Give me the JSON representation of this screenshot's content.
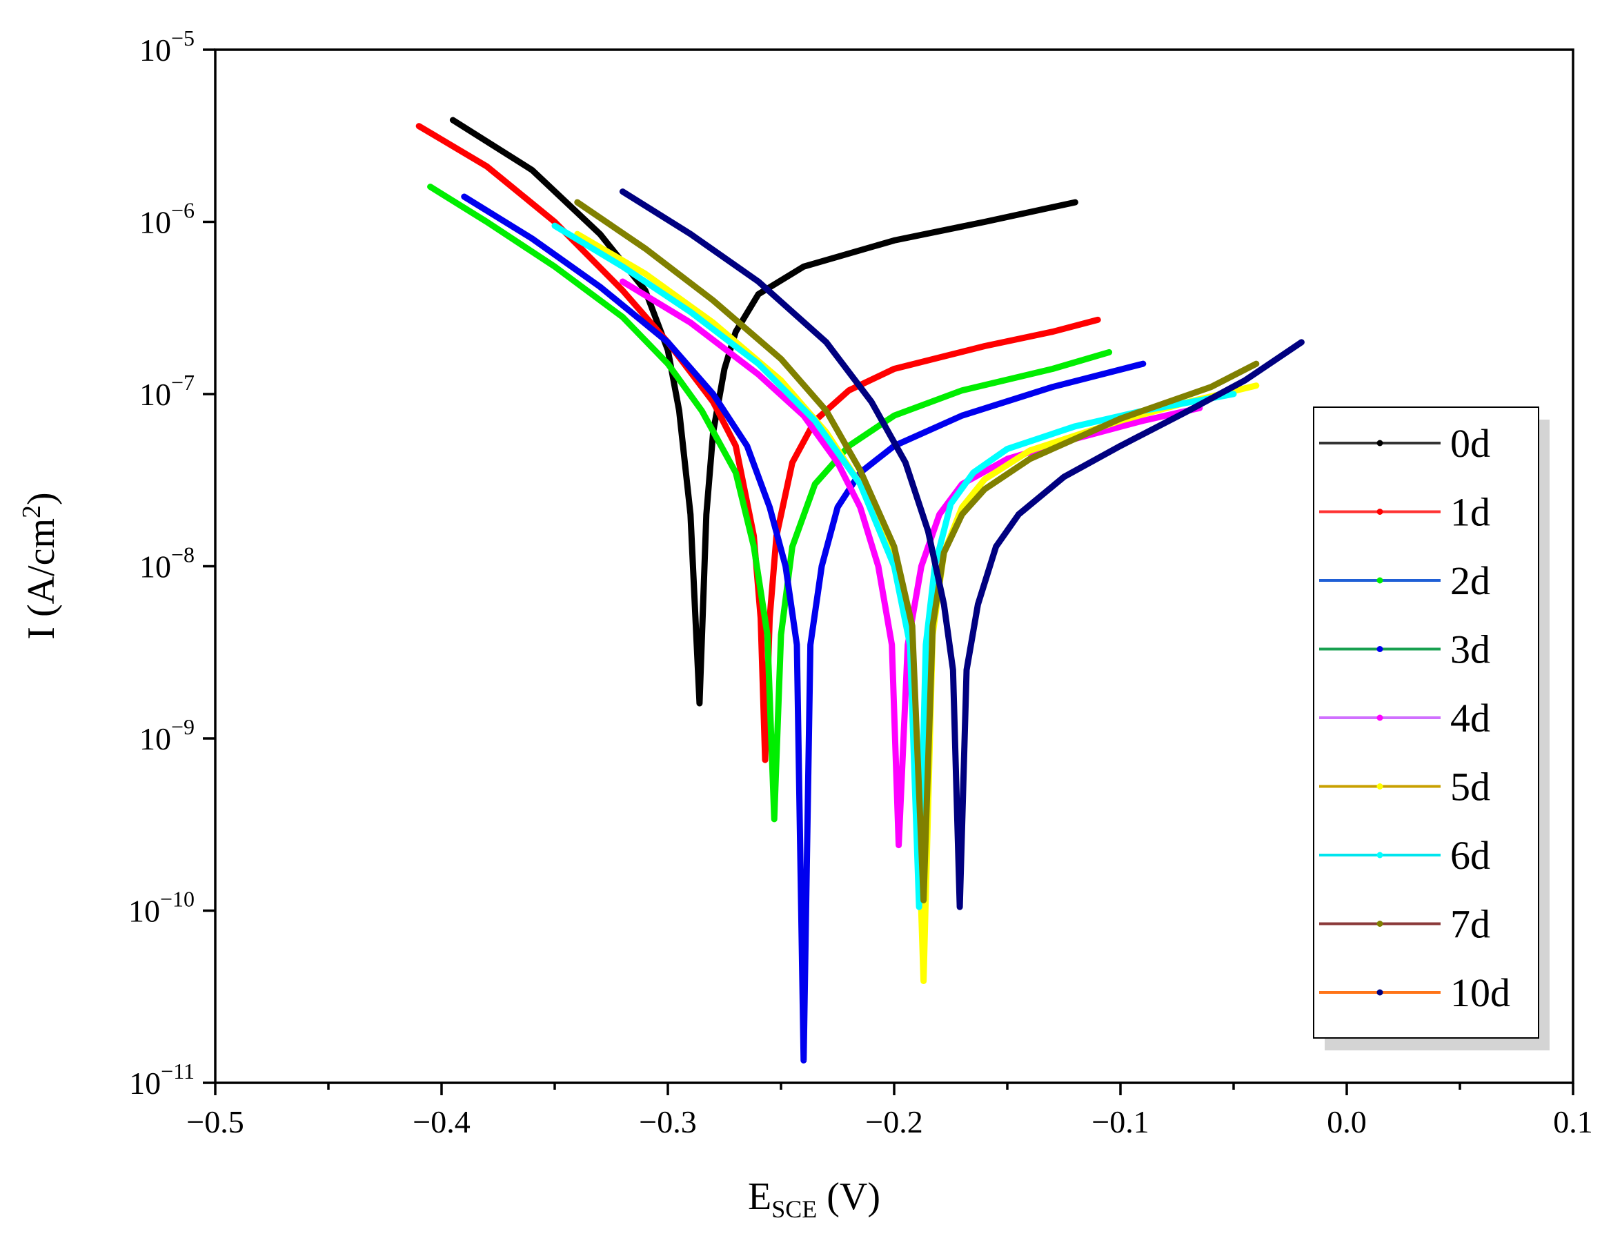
{
  "chart_data": {
    "type": "line",
    "title": "",
    "xlabel": {
      "main": "E",
      "sub": "SCE",
      "suffix": " (V)"
    },
    "ylabel": {
      "prefix": "I (A/cm",
      "sup": "2",
      "suffix": ")"
    },
    "xlim": [
      -0.5,
      0.1
    ],
    "ylim": [
      1e-11,
      1e-05
    ],
    "yscale": "log",
    "xticks": [
      {
        "value": -0.5,
        "label": "−0.5"
      },
      {
        "value": -0.4,
        "label": "−0.4"
      },
      {
        "value": -0.3,
        "label": "−0.3"
      },
      {
        "value": -0.2,
        "label": "−0.2"
      },
      {
        "value": -0.1,
        "label": "−0.1"
      },
      {
        "value": 0.0,
        "label": "0.0"
      },
      {
        "value": 0.1,
        "label": "0.1"
      }
    ],
    "yticks": [
      {
        "value": 1e-05,
        "base": "10",
        "exp": "−5"
      },
      {
        "value": 1e-06,
        "base": "10",
        "exp": "−6"
      },
      {
        "value": 1e-07,
        "base": "10",
        "exp": "−7"
      },
      {
        "value": 1e-08,
        "base": "10",
        "exp": "−8"
      },
      {
        "value": 1e-09,
        "base": "10",
        "exp": "−9"
      },
      {
        "value": 1e-10,
        "base": "10",
        "exp": "−10"
      },
      {
        "value": 1e-11,
        "base": "10",
        "exp": "−11"
      }
    ],
    "legend_position": "right",
    "series": [
      {
        "name": "0d",
        "legend_color": "#333333",
        "curve_color": "#000000",
        "ecorr": -0.286,
        "icorr": 1.6e-09,
        "cathodic": [
          [
            -0.395,
            3.9e-06
          ],
          [
            -0.36,
            2e-06
          ],
          [
            -0.33,
            8.5e-07
          ],
          [
            -0.31,
            4e-07
          ],
          [
            -0.3,
            1.8e-07
          ],
          [
            -0.295,
            8e-08
          ],
          [
            -0.29,
            2e-08
          ]
        ],
        "anodic": [
          [
            -0.283,
            2e-08
          ],
          [
            -0.28,
            6e-08
          ],
          [
            -0.275,
            1.4e-07
          ],
          [
            -0.27,
            2.3e-07
          ],
          [
            -0.26,
            3.8e-07
          ],
          [
            -0.24,
            5.5e-07
          ],
          [
            -0.2,
            7.8e-07
          ],
          [
            -0.16,
            1e-06
          ],
          [
            -0.12,
            1.3e-06
          ]
        ]
      },
      {
        "name": "1d",
        "legend_color": "#ff3333",
        "curve_color": "#ff0000",
        "ecorr": -0.257,
        "icorr": 7.5e-10,
        "cathodic": [
          [
            -0.41,
            3.6e-06
          ],
          [
            -0.38,
            2.1e-06
          ],
          [
            -0.35,
            1e-06
          ],
          [
            -0.32,
            4e-07
          ],
          [
            -0.3,
            2e-07
          ],
          [
            -0.28,
            9e-08
          ],
          [
            -0.27,
            5e-08
          ],
          [
            -0.262,
            1.5e-08
          ],
          [
            -0.259,
            5e-09
          ]
        ],
        "anodic": [
          [
            -0.255,
            5e-09
          ],
          [
            -0.252,
            1.5e-08
          ],
          [
            -0.245,
            4e-08
          ],
          [
            -0.235,
            7e-08
          ],
          [
            -0.22,
            1.05e-07
          ],
          [
            -0.2,
            1.4e-07
          ],
          [
            -0.16,
            1.9e-07
          ],
          [
            -0.13,
            2.3e-07
          ],
          [
            -0.11,
            2.7e-07
          ]
        ]
      },
      {
        "name": "2d",
        "legend_color": "#1f5fd6",
        "curve_color": "#00ee00",
        "ecorr": -0.253,
        "icorr": 3.4e-10,
        "cathodic": [
          [
            -0.405,
            1.6e-06
          ],
          [
            -0.38,
            1e-06
          ],
          [
            -0.35,
            5.5e-07
          ],
          [
            -0.32,
            2.8e-07
          ],
          [
            -0.3,
            1.5e-07
          ],
          [
            -0.285,
            8e-08
          ],
          [
            -0.27,
            3.5e-08
          ],
          [
            -0.262,
            1.3e-08
          ],
          [
            -0.256,
            4e-09
          ]
        ],
        "anodic": [
          [
            -0.25,
            4e-09
          ],
          [
            -0.245,
            1.3e-08
          ],
          [
            -0.235,
            3e-08
          ],
          [
            -0.22,
            5e-08
          ],
          [
            -0.2,
            7.5e-08
          ],
          [
            -0.17,
            1.05e-07
          ],
          [
            -0.13,
            1.4e-07
          ],
          [
            -0.105,
            1.75e-07
          ]
        ]
      },
      {
        "name": "3d",
        "legend_color": "#18a050",
        "curve_color": "#0000ee",
        "ecorr": -0.24,
        "icorr": 1.35e-11,
        "cathodic": [
          [
            -0.39,
            1.4e-06
          ],
          [
            -0.36,
            8e-07
          ],
          [
            -0.33,
            4.2e-07
          ],
          [
            -0.3,
            2e-07
          ],
          [
            -0.28,
            1e-07
          ],
          [
            -0.265,
            5e-08
          ],
          [
            -0.255,
            2.2e-08
          ],
          [
            -0.248,
            1e-08
          ],
          [
            -0.243,
            3.5e-09
          ]
        ],
        "anodic": [
          [
            -0.237,
            3.5e-09
          ],
          [
            -0.232,
            1e-08
          ],
          [
            -0.225,
            2.2e-08
          ],
          [
            -0.215,
            3.5e-08
          ],
          [
            -0.2,
            5e-08
          ],
          [
            -0.17,
            7.5e-08
          ],
          [
            -0.13,
            1.1e-07
          ],
          [
            -0.09,
            1.5e-07
          ]
        ]
      },
      {
        "name": "4d",
        "legend_color": "#d070ff",
        "curve_color": "#ff00ff",
        "ecorr": -0.198,
        "icorr": 2.4e-10,
        "cathodic": [
          [
            -0.32,
            4.5e-07
          ],
          [
            -0.29,
            2.6e-07
          ],
          [
            -0.26,
            1.3e-07
          ],
          [
            -0.24,
            7.5e-08
          ],
          [
            -0.225,
            4e-08
          ],
          [
            -0.215,
            2.2e-08
          ],
          [
            -0.207,
            1e-08
          ],
          [
            -0.201,
            3.5e-09
          ]
        ],
        "anodic": [
          [
            -0.194,
            3.5e-09
          ],
          [
            -0.188,
            1e-08
          ],
          [
            -0.18,
            2e-08
          ],
          [
            -0.17,
            3e-08
          ],
          [
            -0.15,
            4.2e-08
          ],
          [
            -0.12,
            5.5e-08
          ],
          [
            -0.09,
            7e-08
          ],
          [
            -0.065,
            8.3e-08
          ]
        ]
      },
      {
        "name": "5d",
        "legend_color": "#c8a000",
        "curve_color": "#ffff00",
        "ecorr": -0.187,
        "icorr": 3.9e-11,
        "cathodic": [
          [
            -0.34,
            8.5e-07
          ],
          [
            -0.31,
            5e-07
          ],
          [
            -0.28,
            2.6e-07
          ],
          [
            -0.25,
            1.2e-07
          ],
          [
            -0.23,
            6e-08
          ],
          [
            -0.215,
            3e-08
          ],
          [
            -0.2,
            1.2e-08
          ],
          [
            -0.192,
            4e-09
          ]
        ],
        "anodic": [
          [
            -0.183,
            4e-09
          ],
          [
            -0.178,
            1.2e-08
          ],
          [
            -0.17,
            2.2e-08
          ],
          [
            -0.16,
            3.2e-08
          ],
          [
            -0.14,
            4.7e-08
          ],
          [
            -0.1,
            7e-08
          ],
          [
            -0.07,
            9e-08
          ],
          [
            -0.04,
            1.12e-07
          ]
        ]
      },
      {
        "name": "6d",
        "legend_color": "#00e5ee",
        "curve_color": "#00ffff",
        "ecorr": -0.189,
        "icorr": 1.05e-10,
        "cathodic": [
          [
            -0.35,
            9.5e-07
          ],
          [
            -0.32,
            5.5e-07
          ],
          [
            -0.29,
            3e-07
          ],
          [
            -0.26,
            1.5e-07
          ],
          [
            -0.235,
            7e-08
          ],
          [
            -0.215,
            3e-08
          ],
          [
            -0.2,
            1e-08
          ],
          [
            -0.193,
            3.5e-09
          ]
        ],
        "anodic": [
          [
            -0.186,
            3.5e-09
          ],
          [
            -0.182,
            1e-08
          ],
          [
            -0.175,
            2.3e-08
          ],
          [
            -0.165,
            3.5e-08
          ],
          [
            -0.15,
            4.8e-08
          ],
          [
            -0.12,
            6.5e-08
          ],
          [
            -0.09,
            8e-08
          ],
          [
            -0.05,
            1e-07
          ]
        ]
      },
      {
        "name": "7d",
        "legend_color": "#8b3a3a",
        "curve_color": "#808000",
        "ecorr": -0.187,
        "icorr": 1.15e-10,
        "cathodic": [
          [
            -0.34,
            1.3e-06
          ],
          [
            -0.31,
            7e-07
          ],
          [
            -0.28,
            3.5e-07
          ],
          [
            -0.25,
            1.6e-07
          ],
          [
            -0.23,
            8e-08
          ],
          [
            -0.215,
            3.6e-08
          ],
          [
            -0.2,
            1.3e-08
          ],
          [
            -0.192,
            4.5e-09
          ]
        ],
        "anodic": [
          [
            -0.183,
            4.5e-09
          ],
          [
            -0.178,
            1.2e-08
          ],
          [
            -0.17,
            2e-08
          ],
          [
            -0.16,
            2.8e-08
          ],
          [
            -0.14,
            4.2e-08
          ],
          [
            -0.1,
            7.2e-08
          ],
          [
            -0.06,
            1.1e-07
          ],
          [
            -0.04,
            1.5e-07
          ]
        ]
      },
      {
        "name": "10d",
        "legend_color": "#ff7418",
        "curve_color": "#000080",
        "ecorr": -0.171,
        "icorr": 1.05e-10,
        "cathodic": [
          [
            -0.32,
            1.5e-06
          ],
          [
            -0.29,
            8.5e-07
          ],
          [
            -0.26,
            4.5e-07
          ],
          [
            -0.23,
            2e-07
          ],
          [
            -0.21,
            9e-08
          ],
          [
            -0.195,
            4e-08
          ],
          [
            -0.185,
            1.6e-08
          ],
          [
            -0.178,
            6e-09
          ],
          [
            -0.174,
            2.5e-09
          ]
        ],
        "anodic": [
          [
            -0.168,
            2.5e-09
          ],
          [
            -0.163,
            6e-09
          ],
          [
            -0.155,
            1.3e-08
          ],
          [
            -0.145,
            2e-08
          ],
          [
            -0.125,
            3.3e-08
          ],
          [
            -0.1,
            5e-08
          ],
          [
            -0.07,
            8e-08
          ],
          [
            -0.045,
            1.2e-07
          ],
          [
            -0.02,
            2e-07
          ]
        ]
      }
    ]
  }
}
